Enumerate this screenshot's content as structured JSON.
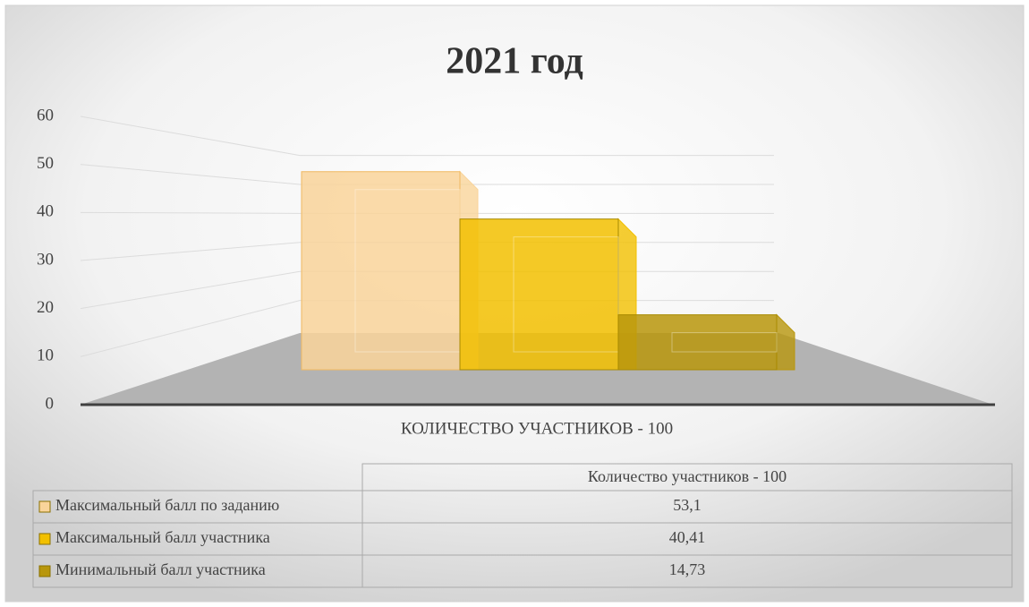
{
  "chart_data": {
    "type": "bar3d",
    "title": "2021 год",
    "categories": [
      "КОЛИЧЕСТВО УЧАСТНИКОВ - 100"
    ],
    "table_header": "Количество участников - 100",
    "series": [
      {
        "name": "Максимальный балл по заданию",
        "color": "#f9d49a",
        "values": [
          53.1
        ],
        "value_labels": [
          "53,1"
        ]
      },
      {
        "name": "Максимальный балл участника",
        "color": "#f2c000",
        "values": [
          40.41
        ],
        "value_labels": [
          "40,41"
        ]
      },
      {
        "name": "Минимальный балл участника",
        "color": "#b8960c",
        "values": [
          14.73
        ],
        "value_labels": [
          "14,73"
        ]
      }
    ],
    "ylim": [
      0,
      60
    ],
    "yticks": [
      0,
      10,
      20,
      30,
      40,
      50,
      60
    ],
    "grid": true
  }
}
